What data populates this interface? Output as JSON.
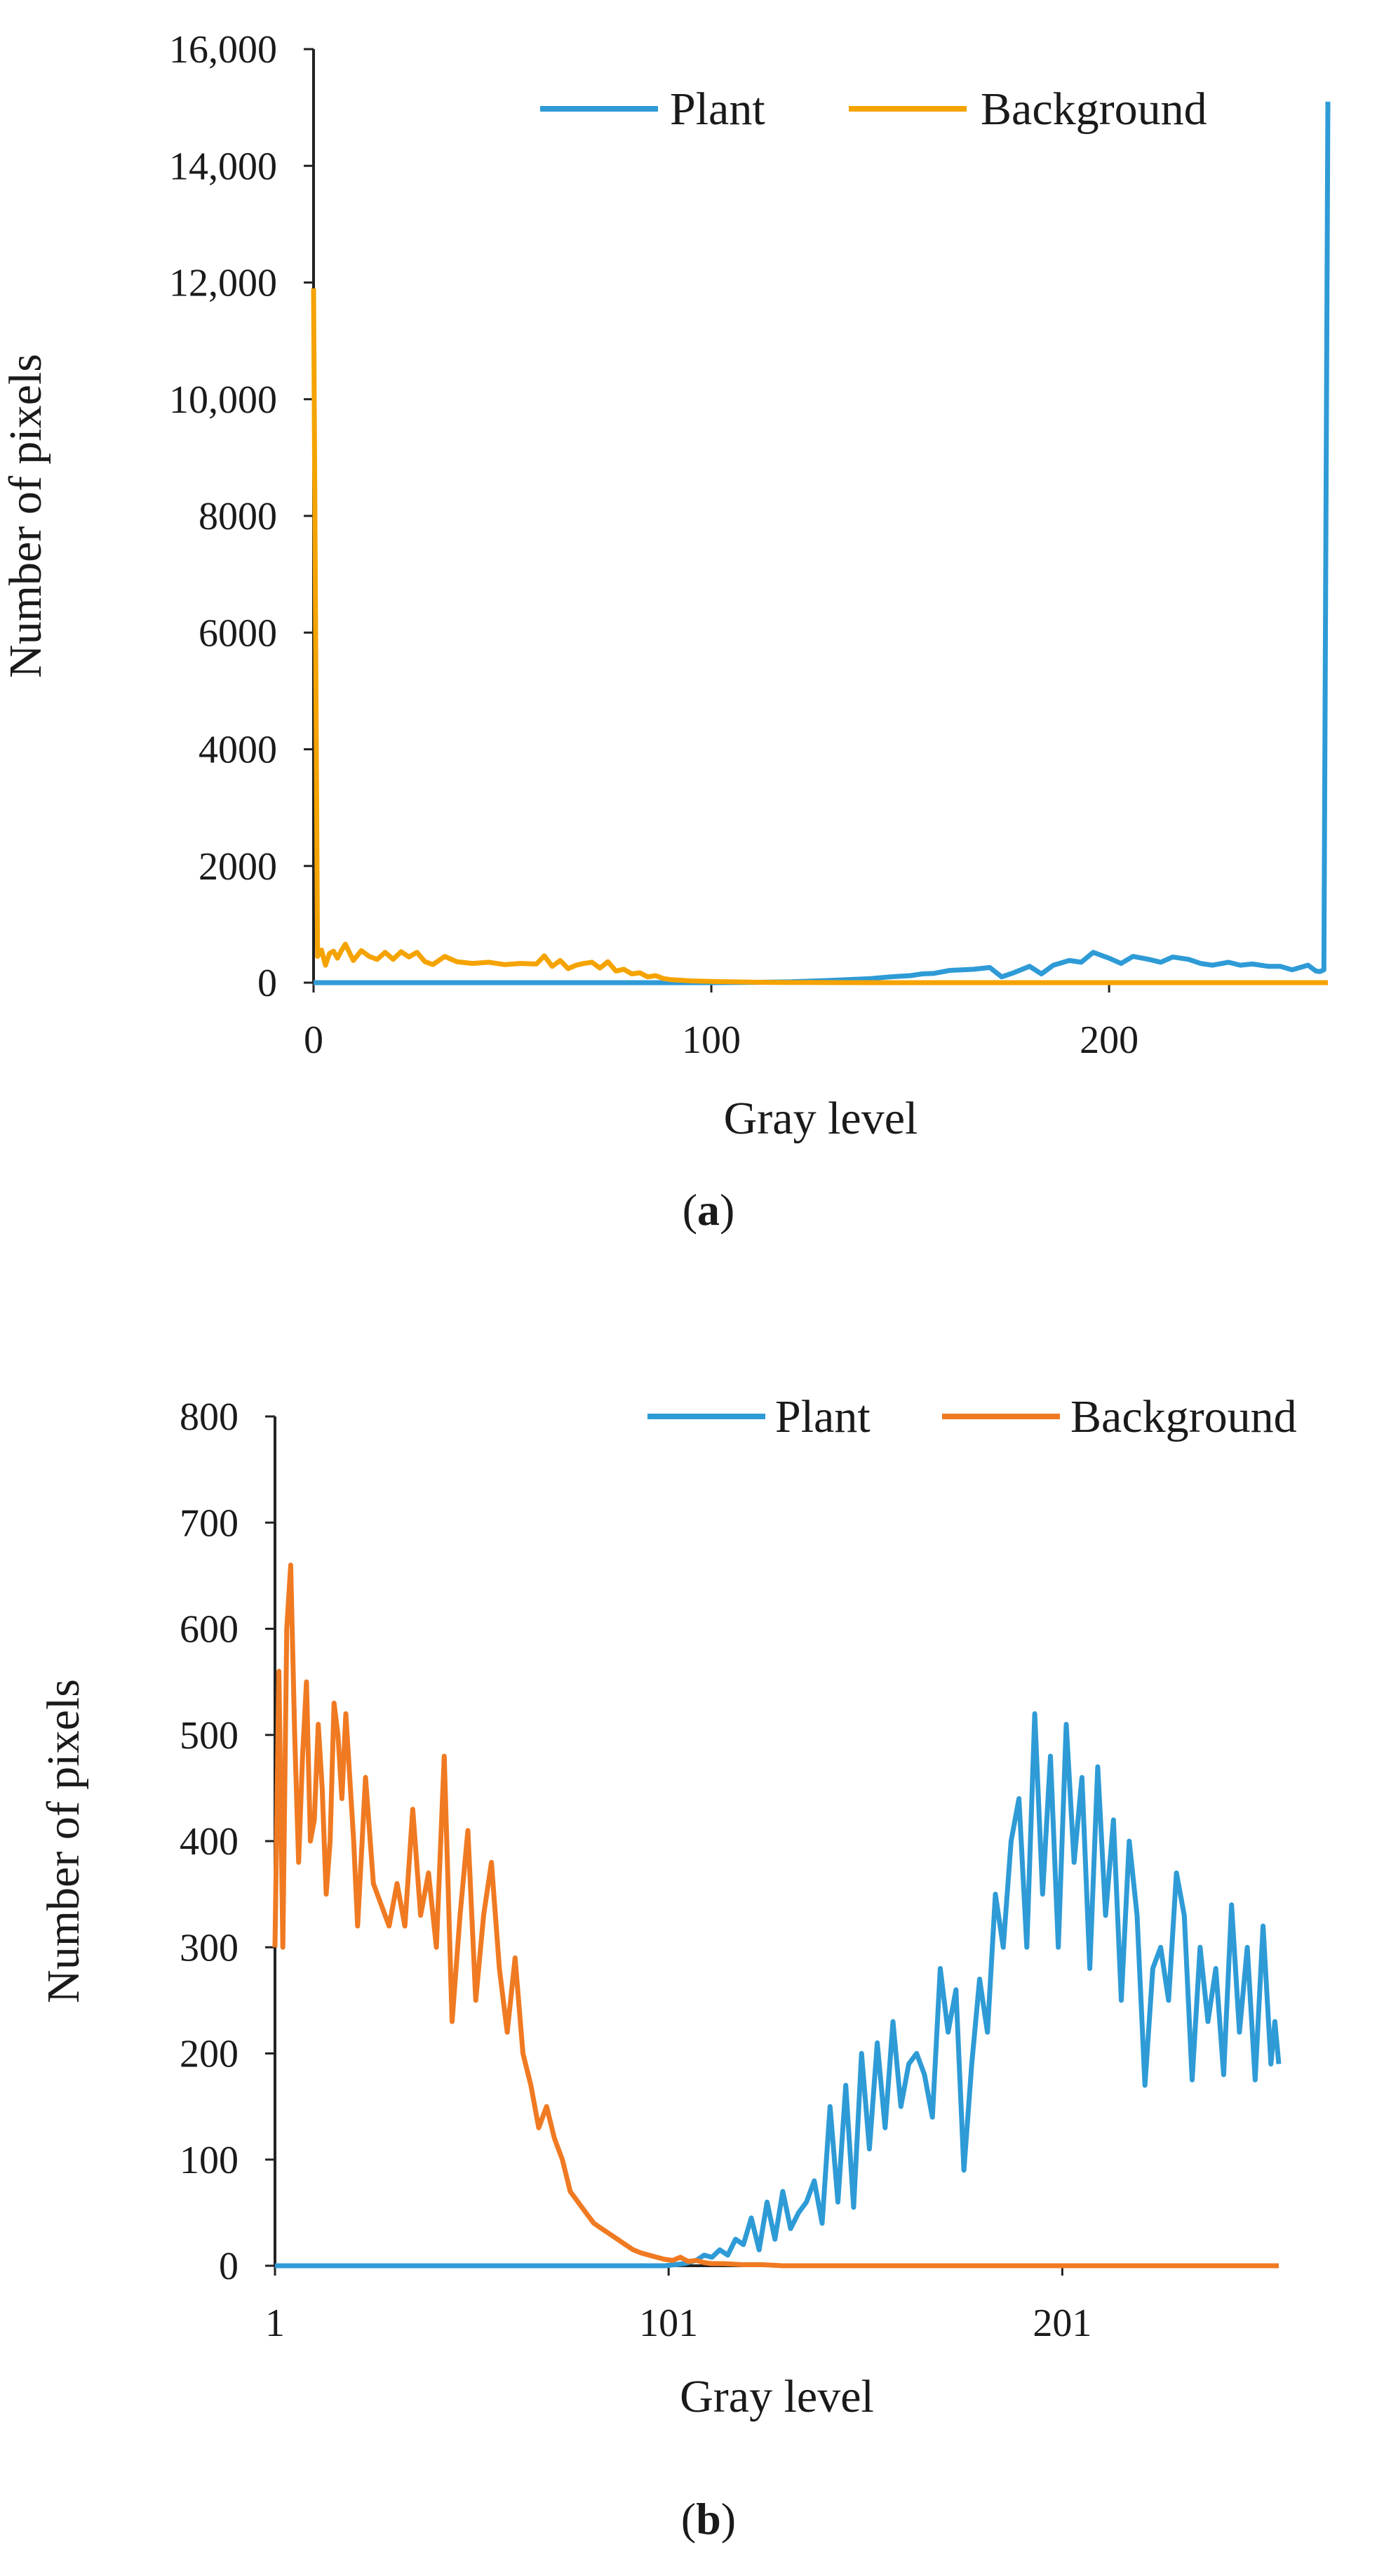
{
  "chart_data": [
    {
      "type": "line",
      "panel_label": "a",
      "xlabel": "Gray level",
      "ylabel": "Number of pixels",
      "xlim": [
        0,
        255
      ],
      "ylim": [
        0,
        16000
      ],
      "x_ticks": [
        0,
        100,
        200
      ],
      "x_tick_labels": [
        "0",
        "100",
        "200"
      ],
      "y_ticks": [
        0,
        2000,
        4000,
        6000,
        8000,
        10000,
        12000,
        14000,
        16000
      ],
      "y_tick_labels": [
        "0",
        "2000",
        "4000",
        "6000",
        "8000",
        "10,000",
        "12,000",
        "14,000",
        "16,000"
      ],
      "legend_position": "top-right",
      "series": [
        {
          "name": "Plant",
          "color": "#2E9BD6",
          "x": [
            0,
            100,
            110,
            120,
            130,
            140,
            145,
            150,
            153,
            156,
            160,
            163,
            166,
            170,
            173,
            176,
            180,
            183,
            186,
            190,
            193,
            196,
            200,
            203,
            206,
            210,
            213,
            216,
            220,
            223,
            226,
            230,
            233,
            236,
            240,
            243,
            246,
            250,
            252,
            253,
            254,
            255
          ],
          "y": [
            0,
            0,
            5,
            15,
            40,
            70,
            100,
            120,
            150,
            160,
            210,
            220,
            230,
            260,
            100,
            170,
            280,
            150,
            300,
            380,
            350,
            520,
            420,
            330,
            450,
            400,
            350,
            440,
            400,
            330,
            300,
            350,
            300,
            320,
            280,
            280,
            220,
            300,
            200,
            190,
            220,
            15100
          ]
        },
        {
          "name": "Background",
          "color": "#F5A300",
          "x": [
            0,
            1,
            2,
            3,
            4,
            5,
            6,
            7,
            8,
            9,
            10,
            12,
            14,
            16,
            18,
            20,
            22,
            24,
            26,
            28,
            30,
            33,
            36,
            40,
            44,
            48,
            52,
            56,
            58,
            60,
            62,
            64,
            66,
            68,
            70,
            72,
            74,
            76,
            78,
            80,
            82,
            84,
            86,
            88,
            90,
            95,
            100,
            105,
            110,
            115,
            120,
            125,
            130,
            140,
            150,
            255
          ],
          "y": [
            11900,
            450,
            560,
            300,
            500,
            540,
            420,
            550,
            660,
            520,
            380,
            550,
            450,
            400,
            520,
            400,
            530,
            440,
            520,
            360,
            310,
            450,
            360,
            330,
            350,
            310,
            330,
            320,
            460,
            280,
            380,
            240,
            300,
            330,
            350,
            250,
            360,
            200,
            230,
            150,
            170,
            100,
            120,
            70,
            50,
            30,
            20,
            15,
            8,
            5,
            3,
            2,
            1,
            0,
            0,
            0
          ]
        }
      ]
    },
    {
      "type": "line",
      "panel_label": "b",
      "xlabel": "Gray level",
      "ylabel": "Number of pixels",
      "xlim": [
        1,
        256
      ],
      "ylim": [
        0,
        800
      ],
      "x_ticks": [
        1,
        101,
        201
      ],
      "x_tick_labels": [
        "1",
        "101",
        "201"
      ],
      "y_ticks": [
        0,
        100,
        200,
        300,
        400,
        500,
        600,
        700,
        800
      ],
      "y_tick_labels": [
        "0",
        "100",
        "200",
        "300",
        "400",
        "500",
        "600",
        "700",
        "800"
      ],
      "legend_position": "top-right",
      "series": [
        {
          "name": "Plant",
          "color": "#2E9BD6",
          "x": [
            1,
            100,
            105,
            108,
            110,
            112,
            114,
            116,
            118,
            120,
            122,
            124,
            126,
            128,
            130,
            132,
            134,
            136,
            138,
            140,
            142,
            144,
            146,
            148,
            150,
            152,
            154,
            156,
            158,
            160,
            162,
            164,
            166,
            168,
            170,
            172,
            174,
            176,
            178,
            180,
            182,
            184,
            186,
            188,
            190,
            192,
            194,
            196,
            198,
            200,
            202,
            204,
            206,
            208,
            210,
            212,
            214,
            216,
            218,
            220,
            222,
            224,
            226,
            228,
            230,
            232,
            234,
            236,
            238,
            240,
            242,
            244,
            246,
            248,
            250,
            252,
            254,
            255,
            256
          ],
          "y": [
            0,
            0,
            2,
            5,
            10,
            8,
            15,
            10,
            25,
            20,
            45,
            15,
            60,
            25,
            70,
            35,
            50,
            60,
            80,
            40,
            150,
            60,
            170,
            55,
            200,
            110,
            210,
            130,
            230,
            150,
            190,
            200,
            180,
            140,
            280,
            220,
            260,
            90,
            190,
            270,
            220,
            350,
            300,
            400,
            440,
            300,
            520,
            350,
            480,
            300,
            510,
            380,
            460,
            280,
            470,
            330,
            420,
            250,
            400,
            330,
            170,
            280,
            300,
            250,
            370,
            330,
            175,
            300,
            230,
            280,
            180,
            340,
            220,
            300,
            175,
            320,
            190,
            230,
            190
          ]
        },
        {
          "name": "Background",
          "color": "#F07A22",
          "x": [
            1,
            2,
            3,
            4,
            5,
            6,
            7,
            8,
            9,
            10,
            11,
            12,
            13,
            14,
            15,
            16,
            17,
            18,
            19,
            20,
            21,
            22,
            24,
            26,
            28,
            30,
            32,
            34,
            36,
            38,
            40,
            42,
            44,
            46,
            48,
            50,
            52,
            54,
            56,
            58,
            60,
            62,
            64,
            66,
            68,
            70,
            72,
            74,
            76,
            78,
            80,
            82,
            84,
            86,
            88,
            90,
            92,
            94,
            96,
            98,
            100,
            102,
            104,
            106,
            108,
            110,
            112,
            115,
            120,
            125,
            130,
            140,
            150,
            256
          ],
          "y": [
            300,
            560,
            300,
            600,
            660,
            500,
            380,
            480,
            550,
            400,
            420,
            510,
            450,
            350,
            400,
            530,
            500,
            440,
            520,
            460,
            400,
            320,
            460,
            360,
            340,
            320,
            360,
            320,
            430,
            330,
            370,
            300,
            480,
            230,
            330,
            410,
            250,
            330,
            380,
            280,
            220,
            290,
            200,
            170,
            130,
            150,
            120,
            100,
            70,
            60,
            50,
            40,
            35,
            30,
            25,
            20,
            15,
            12,
            10,
            8,
            6,
            5,
            8,
            4,
            5,
            3,
            2,
            2,
            1,
            1,
            0,
            0,
            0,
            0
          ]
        }
      ]
    }
  ]
}
